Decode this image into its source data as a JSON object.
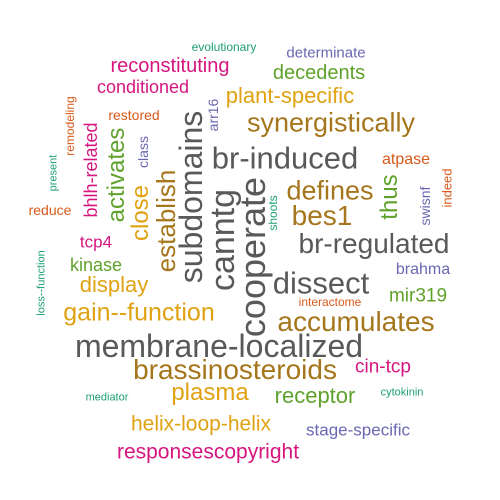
{
  "colors": {
    "magenta": "#d6157f",
    "teal": "#1d9e77",
    "slate": "#6b67b0",
    "green": "#5fa22b",
    "orange": "#d9591a",
    "gold": "#e0a212",
    "brown": "#a5761c",
    "gray": "#595959"
  },
  "words": [
    {
      "text": "evolutionary",
      "color": "teal"
    },
    {
      "text": "reconstituting",
      "color": "magenta"
    },
    {
      "text": "determinate",
      "color": "slate"
    },
    {
      "text": "decedents",
      "color": "green"
    },
    {
      "text": "conditioned",
      "color": "magenta"
    },
    {
      "text": "plant-specific",
      "color": "gold"
    },
    {
      "text": "remodeling",
      "color": "orange"
    },
    {
      "text": "restored",
      "color": "orange"
    },
    {
      "text": "arr16",
      "color": "slate"
    },
    {
      "text": "synergistically",
      "color": "brown"
    },
    {
      "text": "present",
      "color": "teal"
    },
    {
      "text": "bhlh-related",
      "color": "magenta"
    },
    {
      "text": "activates",
      "color": "green"
    },
    {
      "text": "class",
      "color": "slate"
    },
    {
      "text": "subdomains",
      "color": "gray"
    },
    {
      "text": "br-induced",
      "color": "gray"
    },
    {
      "text": "atpase",
      "color": "orange"
    },
    {
      "text": "reduce",
      "color": "orange"
    },
    {
      "text": "close",
      "color": "gold"
    },
    {
      "text": "establish",
      "color": "brown"
    },
    {
      "text": "canntg",
      "color": "gray"
    },
    {
      "text": "cooperate",
      "color": "gray"
    },
    {
      "text": "defines",
      "color": "brown"
    },
    {
      "text": "thus",
      "color": "green"
    },
    {
      "text": "swisnf",
      "color": "slate"
    },
    {
      "text": "indeed",
      "color": "orange"
    },
    {
      "text": "bes1",
      "color": "brown"
    },
    {
      "text": "shoots",
      "color": "teal"
    },
    {
      "text": "tcp4",
      "color": "magenta"
    },
    {
      "text": "br-regulated",
      "color": "gray"
    },
    {
      "text": "loss--function",
      "color": "teal"
    },
    {
      "text": "kinase",
      "color": "green"
    },
    {
      "text": "brahma",
      "color": "slate"
    },
    {
      "text": "display",
      "color": "gold"
    },
    {
      "text": "dissect",
      "color": "gray"
    },
    {
      "text": "mir319",
      "color": "green"
    },
    {
      "text": "interactome",
      "color": "orange"
    },
    {
      "text": "gain--function",
      "color": "gold"
    },
    {
      "text": "accumulates",
      "color": "brown"
    },
    {
      "text": "membrane-localized",
      "color": "gray"
    },
    {
      "text": "brassinosteroids",
      "color": "brown"
    },
    {
      "text": "cin-tcp",
      "color": "magenta"
    },
    {
      "text": "plasma",
      "color": "gold"
    },
    {
      "text": "receptor",
      "color": "green"
    },
    {
      "text": "mediator",
      "color": "teal"
    },
    {
      "text": "cytokinin",
      "color": "teal"
    },
    {
      "text": "helix-loop-helix",
      "color": "gold"
    },
    {
      "text": "stage-specific",
      "color": "slate"
    },
    {
      "text": "responsescopyright",
      "color": "magenta"
    }
  ]
}
